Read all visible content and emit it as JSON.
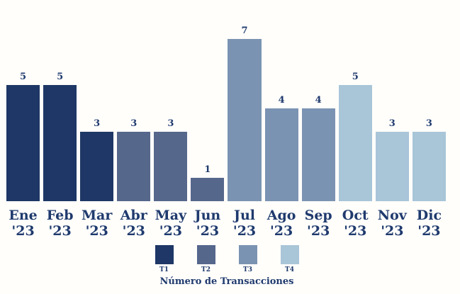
{
  "chart_data": {
    "type": "bar",
    "title": "",
    "caption": "Número de Transacciones",
    "categories": [
      "Ene",
      "Feb",
      "Mar",
      "Abr",
      "May",
      "Jun",
      "Jul",
      "Ago",
      "Sep",
      "Oct",
      "Nov",
      "Dic"
    ],
    "tick_year": "'23",
    "values": [
      5,
      5,
      3,
      3,
      3,
      1,
      7,
      4,
      4,
      5,
      3,
      3
    ],
    "quarters": [
      "T1",
      "T1",
      "T1",
      "T2",
      "T2",
      "T2",
      "T3",
      "T3",
      "T3",
      "T4",
      "T4",
      "T4"
    ],
    "quarter_colors": {
      "T1": "#1e3766",
      "T2": "#56678c",
      "T3": "#7b93b2",
      "T4": "#a9c5d8"
    },
    "legend": [
      {
        "label": "T1",
        "color": "#1e3766"
      },
      {
        "label": "T2",
        "color": "#56678c"
      },
      {
        "label": "T3",
        "color": "#7b93b2"
      },
      {
        "label": "T4",
        "color": "#a9c5d8"
      }
    ],
    "legend_position": "bottom",
    "grid": false,
    "ylim": [
      0,
      7.7
    ],
    "xlabel": "",
    "ylabel": "",
    "text_color": "#1f3a6e",
    "background_color": "#fffefb"
  }
}
